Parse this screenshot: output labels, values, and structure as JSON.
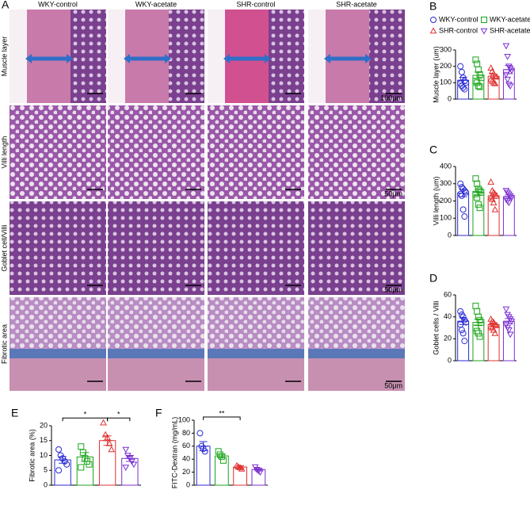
{
  "panel_a": {
    "letter": "A",
    "columns": [
      "WKY-control",
      "WKY-acetate",
      "SHR-control",
      "SHR-acetate"
    ],
    "rows": [
      "Muscle layer",
      "Villi length",
      "Goblet cell/Villi",
      "Fibrotic area"
    ],
    "scale_bars": [
      "100μm",
      "50μm",
      "50μm",
      "50μm"
    ]
  },
  "chart_data": [
    {
      "type": "bar",
      "panel": "B",
      "ylabel": "Muscle layer (um)",
      "ylim": [
        0,
        300
      ],
      "yticks": [
        0,
        100,
        200,
        300
      ],
      "legend": "top",
      "series": [
        {
          "name": "WKY-control",
          "color": "#2b2bd6",
          "marker": "circle",
          "value": 115,
          "error": 18,
          "points": [
            200,
            165,
            130,
            110,
            100,
            95,
            80,
            70,
            60
          ]
        },
        {
          "name": "WKY-acetate",
          "color": "#1aa51a",
          "marker": "square",
          "value": 145,
          "error": 20,
          "points": [
            240,
            215,
            180,
            150,
            130,
            110,
            100,
            80,
            75
          ]
        },
        {
          "name": "SHR-control",
          "color": "#e03030",
          "marker": "triangle-up",
          "value": 140,
          "error": 12,
          "points": [
            190,
            170,
            155,
            140,
            135,
            120,
            110,
            100,
            95
          ]
        },
        {
          "name": "SHR-acetate",
          "color": "#7a2fd0",
          "marker": "triangle-down",
          "value": 180,
          "error": 25,
          "points": [
            325,
            260,
            200,
            185,
            175,
            150,
            120,
            90,
            80
          ]
        }
      ]
    },
    {
      "type": "bar",
      "panel": "C",
      "ylabel": "Villi length (um)",
      "ylim": [
        0,
        400
      ],
      "yticks": [
        0,
        100,
        200,
        300,
        400
      ],
      "series": [
        {
          "color": "#2b2bd6",
          "marker": "circle",
          "value": 245,
          "error": 20,
          "points": [
            300,
            280,
            270,
            260,
            250,
            240,
            230,
            150,
            110
          ]
        },
        {
          "color": "#1aa51a",
          "marker": "square",
          "value": 250,
          "error": 18,
          "points": [
            330,
            300,
            270,
            260,
            250,
            240,
            220,
            180,
            160
          ]
        },
        {
          "color": "#e03030",
          "marker": "triangle-up",
          "value": 230,
          "error": 15,
          "points": [
            310,
            260,
            250,
            240,
            230,
            220,
            210,
            190,
            150
          ]
        },
        {
          "color": "#7a2fd0",
          "marker": "triangle-down",
          "value": 225,
          "error": 10,
          "points": [
            260,
            250,
            240,
            230,
            220,
            210,
            200,
            190
          ]
        }
      ]
    },
    {
      "type": "bar",
      "panel": "D",
      "ylabel": "Goblet cells / Villi",
      "ylim": [
        0,
        60
      ],
      "yticks": [
        0,
        20,
        40,
        60
      ],
      "series": [
        {
          "color": "#2b2bd6",
          "marker": "circle",
          "value": 36,
          "error": 3,
          "points": [
            45,
            42,
            40,
            37,
            35,
            33,
            28,
            25,
            18
          ]
        },
        {
          "color": "#1aa51a",
          "marker": "square",
          "value": 35,
          "error": 3,
          "points": [
            50,
            45,
            40,
            37,
            35,
            30,
            27,
            25,
            22
          ]
        },
        {
          "color": "#e03030",
          "marker": "triangle-up",
          "value": 33,
          "error": 1.5,
          "points": [
            38,
            36,
            35,
            33,
            32,
            31,
            30,
            28,
            25
          ]
        },
        {
          "color": "#7a2fd0",
          "marker": "triangle-down",
          "value": 36,
          "error": 2.5,
          "points": [
            47,
            42,
            40,
            38,
            36,
            33,
            30,
            28,
            24
          ]
        }
      ]
    },
    {
      "type": "bar",
      "panel": "E",
      "ylabel": "Fibrotic area (%)",
      "ylim": [
        0,
        20
      ],
      "yticks": [
        0,
        5,
        10,
        15,
        20
      ],
      "comparisons": [
        {
          "between": [
            0,
            2
          ],
          "label": "*"
        },
        {
          "between": [
            2,
            3
          ],
          "label": "*"
        }
      ],
      "series": [
        {
          "color": "#2b2bd6",
          "marker": "circle",
          "value": 8.5,
          "error": 1.1,
          "points": [
            12,
            10,
            9,
            8,
            7,
            5
          ]
        },
        {
          "color": "#1aa51a",
          "marker": "square",
          "value": 9.5,
          "error": 1.5,
          "points": [
            13,
            11,
            9,
            8,
            7,
            6
          ]
        },
        {
          "color": "#e03030",
          "marker": "triangle-up",
          "value": 15,
          "error": 1.6,
          "points": [
            21,
            17,
            16,
            14,
            12
          ]
        },
        {
          "color": "#7a2fd0",
          "marker": "triangle-down",
          "value": 9,
          "error": 1,
          "points": [
            12,
            10,
            9,
            8,
            7,
            6
          ]
        }
      ]
    },
    {
      "type": "bar",
      "panel": "F",
      "ylabel": "FITC-Dextran (mg/mL)",
      "ylim": [
        0,
        100
      ],
      "yticks": [
        0,
        20,
        40,
        60,
        80,
        100
      ],
      "comparisons": [
        {
          "between": [
            0,
            2
          ],
          "label": "**"
        }
      ],
      "series": [
        {
          "color": "#2b2bd6",
          "marker": "circle",
          "value": 60,
          "error": 7,
          "points": [
            80,
            60,
            56,
            52
          ]
        },
        {
          "color": "#1aa51a",
          "marker": "square",
          "value": 45,
          "error": 3,
          "points": [
            52,
            47,
            44,
            38
          ]
        },
        {
          "color": "#e03030",
          "marker": "triangle-up",
          "value": 28,
          "error": 2,
          "points": [
            30,
            28,
            27,
            25
          ]
        },
        {
          "color": "#7a2fd0",
          "marker": "triangle-down",
          "value": 24,
          "error": 2,
          "points": [
            28,
            24,
            22,
            20
          ]
        }
      ]
    }
  ]
}
